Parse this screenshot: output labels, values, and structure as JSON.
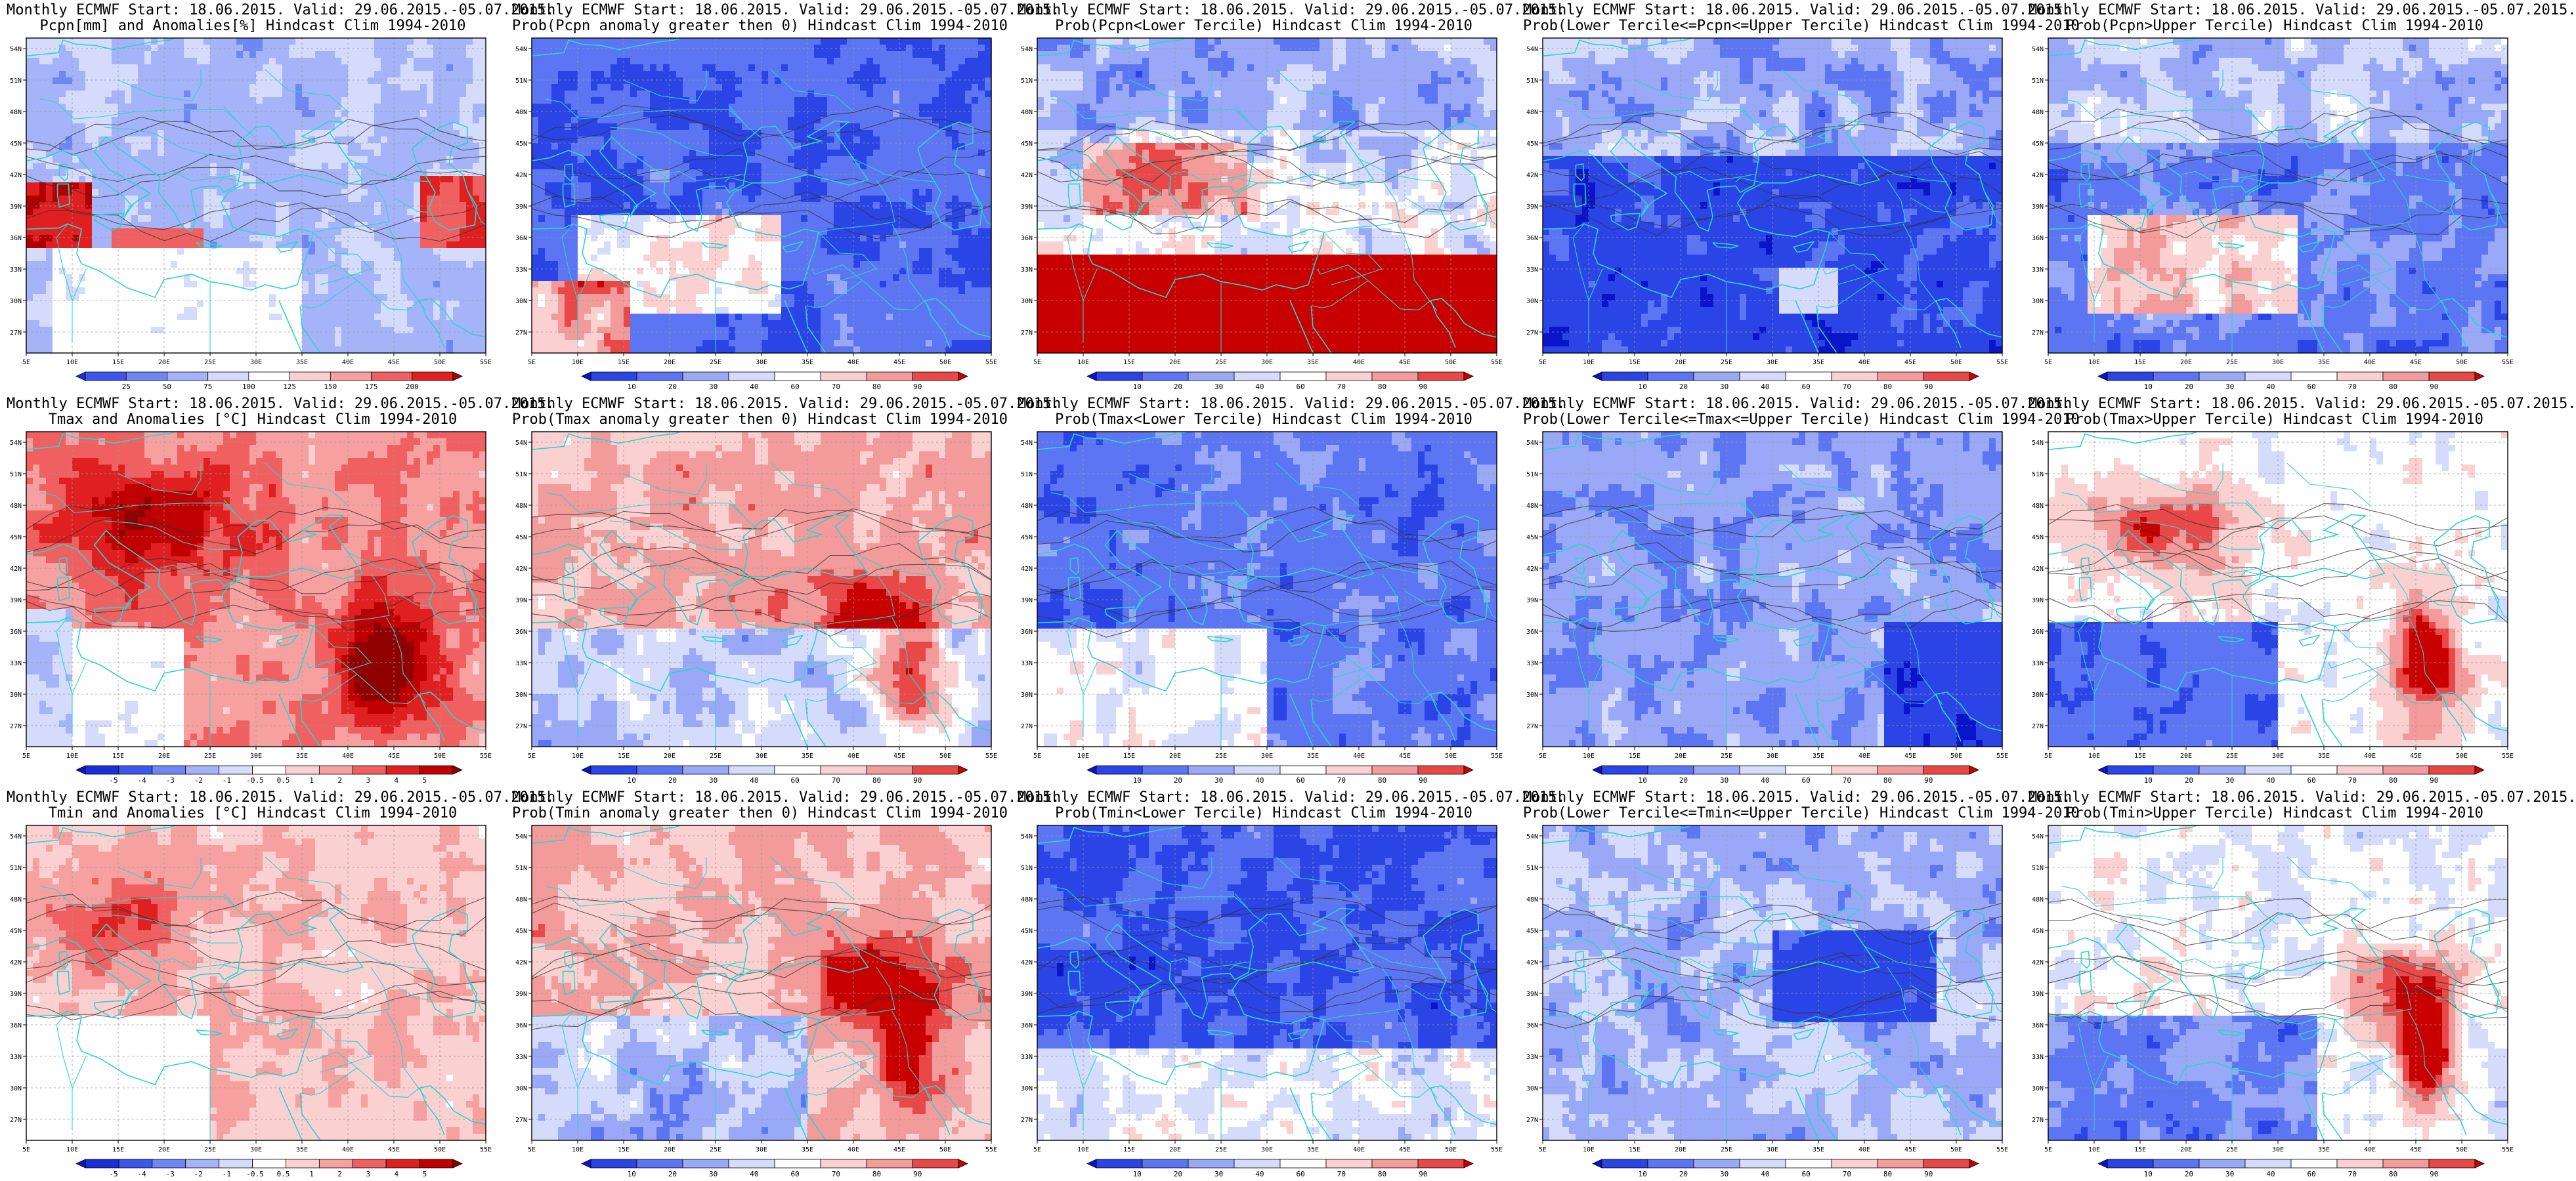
{
  "figure": {
    "columns": 5,
    "rows": 3,
    "title_line1": "Monthly ECMWF Start: 18.06.2015. Valid: 29.06.2015.-05.07.2015.",
    "lon_ticks": [
      "5E",
      "10E",
      "15E",
      "20E",
      "25E",
      "30E",
      "35E",
      "40E",
      "45E",
      "50E",
      "55E"
    ],
    "lat_ticks": [
      "54N",
      "51N",
      "48N",
      "45N",
      "42N",
      "39N",
      "36N",
      "33N",
      "30N",
      "27N"
    ]
  },
  "colorbars": {
    "pcpn_anom": {
      "labels": [
        "25",
        "50",
        "75",
        "100",
        "125",
        "150",
        "175",
        "200"
      ],
      "colors": [
        "#1a2fd6",
        "#3d57ee",
        "#6f86f5",
        "#a5b3f8",
        "#d4dbfb",
        "#ffffff",
        "#fbd0d0",
        "#f7a0a0",
        "#f06060",
        "#e02020",
        "#b00000"
      ]
    },
    "temp_anom": {
      "labels": [
        "-5",
        "-4",
        "-3",
        "-2",
        "-1",
        "-0.5",
        "0.5",
        "1",
        "2",
        "3",
        "4",
        "5"
      ],
      "colors": [
        "#0a14c8",
        "#1a2fd6",
        "#3d57ee",
        "#6f86f5",
        "#a5b3f8",
        "#d4dbfb",
        "#ffffff",
        "#fbd0d0",
        "#f7a0a0",
        "#f06060",
        "#e02020",
        "#c00000",
        "#900000"
      ]
    },
    "prob": {
      "labels": [
        "10",
        "20",
        "30",
        "40",
        "60",
        "70",
        "80",
        "90"
      ],
      "colors": [
        "#0a14c8",
        "#2a44e6",
        "#5c75f2",
        "#99a9f7",
        "#d4dbfb",
        "#ffffff",
        "#fbd0d0",
        "#f39a9a",
        "#e84848",
        "#c80000"
      ]
    }
  },
  "panels": [
    {
      "title": "Pcpn[mm] and Anomalies[%] Hindcast Clim 1994-2010",
      "colorbar": "pcpn_anom",
      "style": "pcpn_anom"
    },
    {
      "title": "Prob(Pcpn anomaly greater then 0) Hindcast Clim 1994-2010",
      "colorbar": "prob",
      "style": "prob_gt0_pcpn"
    },
    {
      "title": "Prob(Pcpn<Lower Tercile) Hindcast Clim 1994-2010",
      "colorbar": "prob",
      "style": "prob_lower_pcpn"
    },
    {
      "title": "Prob(Lower Tercile<=Pcpn<=Upper Tercile) Hindcast Clim 1994-2010",
      "colorbar": "prob",
      "style": "prob_mid_pcpn"
    },
    {
      "title": "Prob(Pcpn>Upper Tercile) Hindcast Clim 1994-2010",
      "colorbar": "prob",
      "style": "prob_upper_pcpn"
    },
    {
      "title": "Tmax and Anomalies [°C] Hindcast Clim 1994-2010",
      "colorbar": "temp_anom",
      "style": "temp_anom_max"
    },
    {
      "title": "Prob(Tmax anomaly greater then 0) Hindcast Clim 1994-2010",
      "colorbar": "prob",
      "style": "prob_gt0_tmax"
    },
    {
      "title": "Prob(Tmax<Lower Tercile) Hindcast Clim 1994-2010",
      "colorbar": "prob",
      "style": "prob_lower_tmax"
    },
    {
      "title": "Prob(Lower Tercile<=Tmax<=Upper Tercile) Hindcast Clim 1994-2010",
      "colorbar": "prob",
      "style": "prob_mid_tmax"
    },
    {
      "title": "Prob(Tmax>Upper Tercile) Hindcast Clim 1994-2010",
      "colorbar": "prob",
      "style": "prob_upper_tmax"
    },
    {
      "title": "Tmin and Anomalies [°C] Hindcast Clim 1994-2010",
      "colorbar": "temp_anom",
      "style": "temp_anom_min"
    },
    {
      "title": "Prob(Tmin anomaly greater then 0) Hindcast Clim 1994-2010",
      "colorbar": "prob",
      "style": "prob_gt0_tmin"
    },
    {
      "title": "Prob(Tmin<Lower Tercile) Hindcast Clim 1994-2010",
      "colorbar": "prob",
      "style": "prob_lower_tmin"
    },
    {
      "title": "Prob(Lower Tercile<=Tmin<=Upper Tercile) Hindcast Clim 1994-2010",
      "colorbar": "prob",
      "style": "prob_mid_tmin"
    },
    {
      "title": "Prob(Tmin>Upper Tercile) Hindcast Clim 1994-2010",
      "colorbar": "prob",
      "style": "prob_upper_tmin"
    }
  ]
}
